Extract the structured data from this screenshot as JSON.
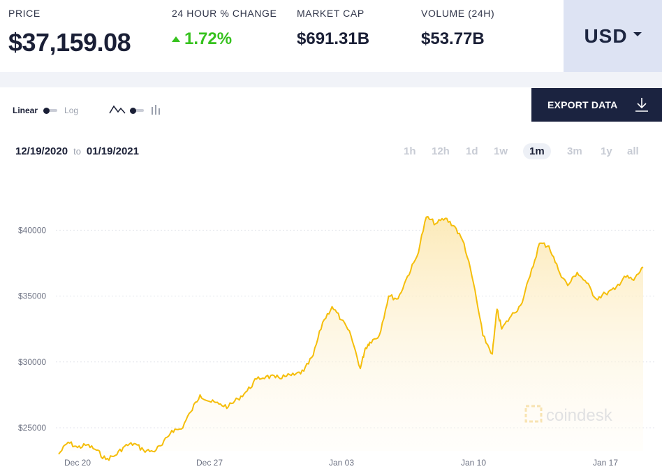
{
  "stats": {
    "price": {
      "label": "PRICE",
      "value": "$37,159.08"
    },
    "change": {
      "label": "24 HOUR % CHANGE",
      "value": "1.72%"
    },
    "market_cap": {
      "label": "MARKET CAP",
      "value": "$691.31B"
    },
    "volume": {
      "label": "VOLUME (24H)",
      "value": "$53.77B"
    }
  },
  "currency": "USD",
  "scale_toggle": {
    "left": "Linear",
    "right": "Log"
  },
  "export_label": "EXPORT DATA",
  "date_range": {
    "from": "12/19/2020",
    "to_word": "to",
    "to": "01/19/2021"
  },
  "ranges": [
    "1h",
    "12h",
    "1d",
    "1w",
    "1m",
    "3m",
    "1y",
    "all"
  ],
  "active_range": "1m",
  "watermark": "coindesk",
  "colors": {
    "line": "#f5be0b",
    "fill": "#fdf0c8",
    "positive": "#36c21e",
    "accent_bg": "#dde3f3",
    "export_bg": "#1b2340"
  },
  "chart_data": {
    "type": "area",
    "title": "",
    "xlabel": "",
    "ylabel": "",
    "x_ticks": [
      "Dec 20",
      "Dec 27",
      "Jan 03",
      "Jan 10",
      "Jan 17"
    ],
    "y_ticks": [
      "$25000",
      "$30000",
      "$35000",
      "$40000"
    ],
    "ylim": [
      22500,
      41500
    ],
    "grid": true,
    "series": [
      {
        "x": [
          "2020-12-19",
          "2020-12-19 12:00",
          "2020-12-20",
          "2020-12-20 12:00",
          "2020-12-21",
          "2020-12-21 12:00",
          "2020-12-22",
          "2020-12-22 12:00",
          "2020-12-23",
          "2020-12-23 12:00",
          "2020-12-24",
          "2020-12-24 12:00",
          "2020-12-25",
          "2020-12-25 12:00",
          "2020-12-26",
          "2020-12-26 12:00",
          "2020-12-27",
          "2020-12-27 12:00",
          "2020-12-28",
          "2020-12-28 12:00",
          "2020-12-29",
          "2020-12-29 12:00",
          "2020-12-30",
          "2020-12-30 12:00",
          "2020-12-31",
          "2020-12-31 12:00",
          "2021-01-01",
          "2021-01-01 12:00",
          "2021-01-02",
          "2021-01-02 12:00",
          "2021-01-03",
          "2021-01-03 12:00",
          "2021-01-04",
          "2021-01-04 06:00",
          "2021-01-04 12:00",
          "2021-01-05",
          "2021-01-05 12:00",
          "2021-01-06",
          "2021-01-06 12:00",
          "2021-01-07",
          "2021-01-07 12:00",
          "2021-01-08",
          "2021-01-08 12:00",
          "2021-01-09",
          "2021-01-09 12:00",
          "2021-01-10",
          "2021-01-10 12:00",
          "2021-01-11",
          "2021-01-11 06:00",
          "2021-01-11 12:00",
          "2021-01-12",
          "2021-01-12 12:00",
          "2021-01-13",
          "2021-01-13 12:00",
          "2021-01-14",
          "2021-01-14 12:00",
          "2021-01-15",
          "2021-01-15 12:00",
          "2021-01-16",
          "2021-01-16 12:00",
          "2021-01-17",
          "2021-01-17 12:00",
          "2021-01-18",
          "2021-01-18 12:00",
          "2021-01-19"
        ],
        "values": [
          23000,
          23900,
          23500,
          23700,
          23300,
          22600,
          22900,
          23600,
          23800,
          23300,
          23200,
          23700,
          24800,
          24900,
          26200,
          27500,
          27000,
          26800,
          26600,
          27200,
          27800,
          28700,
          28900,
          28800,
          28900,
          29000,
          29300,
          30500,
          33000,
          34200,
          33200,
          32000,
          29500,
          31000,
          31500,
          32000,
          35000,
          34800,
          36500,
          38000,
          41000,
          40500,
          40900,
          40300,
          39000,
          36000,
          32000,
          30600,
          34000,
          32500,
          33500,
          34300,
          36500,
          39000,
          38800,
          37000,
          35800,
          36800,
          36000,
          34800,
          35200,
          35500,
          36500,
          36200,
          37200
        ]
      }
    ]
  }
}
